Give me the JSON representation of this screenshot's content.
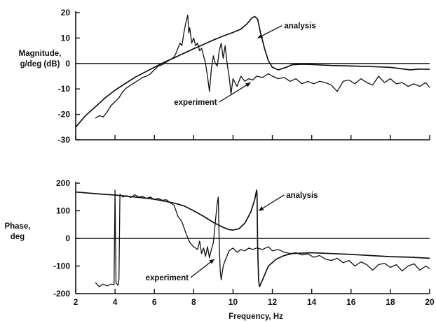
{
  "chart_data": [
    {
      "type": "line",
      "id": "magnitude",
      "ylabel": [
        "Magnitude,",
        "g/deg (dB)"
      ],
      "xlim": [
        2,
        20
      ],
      "ylim": [
        -30,
        20
      ],
      "x_ticks": [
        2,
        4,
        6,
        8,
        10,
        12,
        14,
        16,
        18,
        20
      ],
      "x_tick_labels": [
        "",
        "",
        "",
        "",
        "",
        "",
        "",
        "",
        "",
        ""
      ],
      "y_ticks": [
        20,
        10,
        0,
        -10,
        -20,
        -30
      ],
      "y_tick_labels": [
        "20",
        "10",
        "0",
        "-10",
        "-20",
        "-30"
      ],
      "zero_line": 0,
      "series": [
        {
          "name": "analysis",
          "points": [
            [
              2,
              -25
            ],
            [
              2.5,
              -20.5
            ],
            [
              3,
              -17
            ],
            [
              3.5,
              -13.5
            ],
            [
              4,
              -10.5
            ],
            [
              4.5,
              -8
            ],
            [
              5,
              -5.5
            ],
            [
              5.5,
              -3.5
            ],
            [
              6,
              -1.5
            ],
            [
              6.5,
              0.5
            ],
            [
              7,
              2.2
            ],
            [
              7.5,
              4
            ],
            [
              8,
              5.8
            ],
            [
              8.5,
              7.5
            ],
            [
              9,
              9.2
            ],
            [
              9.5,
              10.8
            ],
            [
              10,
              12.2
            ],
            [
              10.4,
              13.5
            ],
            [
              10.7,
              15.5
            ],
            [
              10.95,
              17.8
            ],
            [
              11.1,
              18.5
            ],
            [
              11.25,
              17.5
            ],
            [
              11.4,
              12
            ],
            [
              11.6,
              6
            ],
            [
              11.8,
              1
            ],
            [
              12,
              -1.5
            ],
            [
              12.3,
              -2.5
            ],
            [
              12.7,
              -1.5
            ],
            [
              13,
              -0.5
            ],
            [
              13.5,
              -0.3
            ],
            [
              14,
              -0.4
            ],
            [
              15,
              -0.8
            ],
            [
              16,
              -1
            ],
            [
              17,
              -1.2
            ],
            [
              18,
              -1.5
            ],
            [
              18.5,
              -2
            ],
            [
              19,
              -2.5
            ],
            [
              19.5,
              -2.2
            ],
            [
              20,
              -2.3
            ]
          ]
        },
        {
          "name": "experiment",
          "points": [
            [
              3,
              -21.5
            ],
            [
              3.2,
              -20.5
            ],
            [
              3.4,
              -21
            ],
            [
              3.6,
              -19
            ],
            [
              3.8,
              -16.5
            ],
            [
              4,
              -15
            ],
            [
              4.2,
              -13.5
            ],
            [
              4.4,
              -11
            ],
            [
              4.6,
              -9.5
            ],
            [
              4.8,
              -8.5
            ],
            [
              5,
              -7.5
            ],
            [
              5.2,
              -6.5
            ],
            [
              5.4,
              -5.5
            ],
            [
              5.6,
              -5
            ],
            [
              5.8,
              -4
            ],
            [
              6,
              -2.5
            ],
            [
              6.2,
              -1
            ],
            [
              6.4,
              -0.5
            ],
            [
              6.6,
              0.5
            ],
            [
              6.8,
              1.5
            ],
            [
              7,
              2.5
            ],
            [
              7.1,
              4
            ],
            [
              7.2,
              6
            ],
            [
              7.3,
              8
            ],
            [
              7.4,
              7
            ],
            [
              7.5,
              12
            ],
            [
              7.6,
              16
            ],
            [
              7.7,
              19
            ],
            [
              7.75,
              12
            ],
            [
              7.8,
              14
            ],
            [
              7.9,
              8
            ],
            [
              8,
              10
            ],
            [
              8.1,
              7
            ],
            [
              8.2,
              8
            ],
            [
              8.3,
              5
            ],
            [
              8.4,
              6
            ],
            [
              8.5,
              3
            ],
            [
              8.6,
              0
            ],
            [
              8.7,
              -5
            ],
            [
              8.8,
              -11
            ],
            [
              8.9,
              -2
            ],
            [
              9,
              3
            ],
            [
              9.1,
              0
            ],
            [
              9.2,
              -1
            ],
            [
              9.3,
              5
            ],
            [
              9.4,
              8
            ],
            [
              9.5,
              2
            ],
            [
              9.6,
              7
            ],
            [
              9.7,
              0
            ],
            [
              9.8,
              -5
            ],
            [
              9.9,
              -12
            ],
            [
              10,
              -6
            ],
            [
              10.2,
              -9
            ],
            [
              10.4,
              -5
            ],
            [
              10.6,
              -7
            ],
            [
              10.8,
              -6
            ],
            [
              11,
              -6.5
            ],
            [
              11.2,
              -5
            ],
            [
              11.5,
              -5.5
            ],
            [
              11.8,
              -4
            ],
            [
              12,
              -5
            ],
            [
              12.3,
              -6
            ],
            [
              12.6,
              -5.5
            ],
            [
              12.9,
              -7
            ],
            [
              13.2,
              -6
            ],
            [
              13.5,
              -8
            ],
            [
              13.8,
              -7
            ],
            [
              14.1,
              -8
            ],
            [
              14.4,
              -7
            ],
            [
              14.7,
              -7.5
            ],
            [
              15,
              -8.5
            ],
            [
              15.3,
              -11
            ],
            [
              15.6,
              -7
            ],
            [
              15.9,
              -6.5
            ],
            [
              16.2,
              -8
            ],
            [
              16.5,
              -6
            ],
            [
              16.8,
              -7.5
            ],
            [
              17.1,
              -8.5
            ],
            [
              17.4,
              -5
            ],
            [
              17.7,
              -7.5
            ],
            [
              18,
              -6
            ],
            [
              18.3,
              -8
            ],
            [
              18.6,
              -7.5
            ],
            [
              18.9,
              -9
            ],
            [
              19.2,
              -8
            ],
            [
              19.5,
              -9
            ],
            [
              19.8,
              -7.5
            ],
            [
              20,
              -9.5
            ]
          ]
        }
      ],
      "annotations": [
        {
          "text": "analysis",
          "x": 12.6,
          "y": 13.8,
          "arrow_to": [
            11.25,
            10
          ]
        },
        {
          "text": "experiment",
          "x": 7.0,
          "y": -16.3,
          "arrow_to": [
            10.9,
            -7.5
          ]
        }
      ]
    },
    {
      "type": "line",
      "id": "phase",
      "ylabel": [
        "Phase,",
        "deg"
      ],
      "xlabel": "Frequency, Hz",
      "xlim": [
        2,
        20
      ],
      "ylim": [
        -200,
        200
      ],
      "x_ticks": [
        2,
        4,
        6,
        8,
        10,
        12,
        14,
        16,
        18,
        20
      ],
      "x_tick_labels": [
        "2",
        "4",
        "6",
        "8",
        "10",
        "12",
        "14",
        "16",
        "18",
        "20"
      ],
      "y_ticks": [
        200,
        100,
        0,
        -100,
        -200
      ],
      "y_tick_labels": [
        "200",
        "100",
        "0",
        "-100",
        "-200"
      ],
      "zero_line": 0,
      "series": [
        {
          "name": "analysis",
          "points": [
            [
              2,
              168
            ],
            [
              3,
              162
            ],
            [
              4,
              157
            ],
            [
              5,
              150
            ],
            [
              6,
              142
            ],
            [
              7,
              128
            ],
            [
              7.5,
              118
            ],
            [
              8,
              100
            ],
            [
              8.5,
              80
            ],
            [
              9,
              58
            ],
            [
              9.5,
              40
            ],
            [
              9.8,
              32
            ],
            [
              10,
              30
            ],
            [
              10.3,
              35
            ],
            [
              10.6,
              55
            ],
            [
              10.9,
              95
            ],
            [
              11.1,
              140
            ],
            [
              11.2,
              175
            ],
            [
              11.22,
              160
            ],
            [
              11.25,
              -20
            ],
            [
              11.3,
              -150
            ],
            [
              11.35,
              -175
            ],
            [
              11.5,
              -150
            ],
            [
              11.8,
              -100
            ],
            [
              12.2,
              -75
            ],
            [
              12.6,
              -62
            ],
            [
              13,
              -55
            ],
            [
              14,
              -52
            ],
            [
              15,
              -55
            ],
            [
              16,
              -58
            ],
            [
              17,
              -62
            ],
            [
              18,
              -66
            ],
            [
              19,
              -68
            ],
            [
              20,
              -72
            ]
          ]
        },
        {
          "name": "experiment",
          "points": [
            [
              3,
              -160
            ],
            [
              3.2,
              -175
            ],
            [
              3.4,
              -165
            ],
            [
              3.6,
              -172
            ],
            [
              3.8,
              -165
            ],
            [
              3.95,
              -168
            ],
            [
              4.0,
              175
            ],
            [
              4.05,
              -160
            ],
            [
              4.15,
              -170
            ],
            [
              4.2,
              -150
            ],
            [
              4.25,
              160
            ],
            [
              4.4,
              150
            ],
            [
              4.6,
              155
            ],
            [
              4.8,
              148
            ],
            [
              5,
              158
            ],
            [
              5.2,
              150
            ],
            [
              5.4,
              152
            ],
            [
              5.6,
              145
            ],
            [
              5.8,
              150
            ],
            [
              6,
              140
            ],
            [
              6.2,
              145
            ],
            [
              6.4,
              138
            ],
            [
              6.6,
              140
            ],
            [
              6.8,
              130
            ],
            [
              7,
              120
            ],
            [
              7.2,
              80
            ],
            [
              7.4,
              60
            ],
            [
              7.6,
              20
            ],
            [
              7.8,
              -15
            ],
            [
              8,
              -30
            ],
            [
              8.2,
              -40
            ],
            [
              8.3,
              -10
            ],
            [
              8.4,
              -55
            ],
            [
              8.5,
              -35
            ],
            [
              8.6,
              -65
            ],
            [
              8.7,
              -30
            ],
            [
              8.8,
              -70
            ],
            [
              8.9,
              -40
            ],
            [
              9,
              -15
            ],
            [
              9.1,
              60
            ],
            [
              9.2,
              130
            ],
            [
              9.25,
              150
            ],
            [
              9.3,
              -20
            ],
            [
              9.35,
              -120
            ],
            [
              9.4,
              -150
            ],
            [
              9.5,
              -100
            ],
            [
              9.6,
              -80
            ],
            [
              9.8,
              -45
            ],
            [
              10,
              -35
            ],
            [
              10.2,
              -50
            ],
            [
              10.4,
              -40
            ],
            [
              10.6,
              -45
            ],
            [
              10.8,
              -35
            ],
            [
              11,
              -40
            ],
            [
              11.2,
              -35
            ],
            [
              11.5,
              -40
            ],
            [
              11.8,
              -30
            ],
            [
              12,
              -45
            ],
            [
              12.3,
              -40
            ],
            [
              12.6,
              -50
            ],
            [
              12.9,
              -55
            ],
            [
              13.2,
              -52
            ],
            [
              13.5,
              -60
            ],
            [
              13.8,
              -56
            ],
            [
              14.1,
              -68
            ],
            [
              14.4,
              -62
            ],
            [
              14.7,
              -75
            ],
            [
              15,
              -80
            ],
            [
              15.3,
              -72
            ],
            [
              15.6,
              -88
            ],
            [
              15.9,
              -80
            ],
            [
              16.2,
              -100
            ],
            [
              16.5,
              -85
            ],
            [
              16.8,
              -95
            ],
            [
              17.1,
              -115
            ],
            [
              17.4,
              -95
            ],
            [
              17.7,
              -90
            ],
            [
              18,
              -105
            ],
            [
              18.3,
              -95
            ],
            [
              18.6,
              -118
            ],
            [
              18.9,
              -100
            ],
            [
              19.2,
              -92
            ],
            [
              19.5,
              -115
            ],
            [
              19.8,
              -100
            ],
            [
              20,
              -110
            ]
          ]
        }
      ],
      "annotations": [
        {
          "text": "analysis",
          "x": 12.7,
          "y": 147,
          "arrow_to": [
            11.3,
            100
          ]
        },
        {
          "text": "experiment",
          "x": 5.55,
          "y": -152,
          "arrow_to": [
            9.05,
            -75
          ]
        }
      ]
    }
  ]
}
